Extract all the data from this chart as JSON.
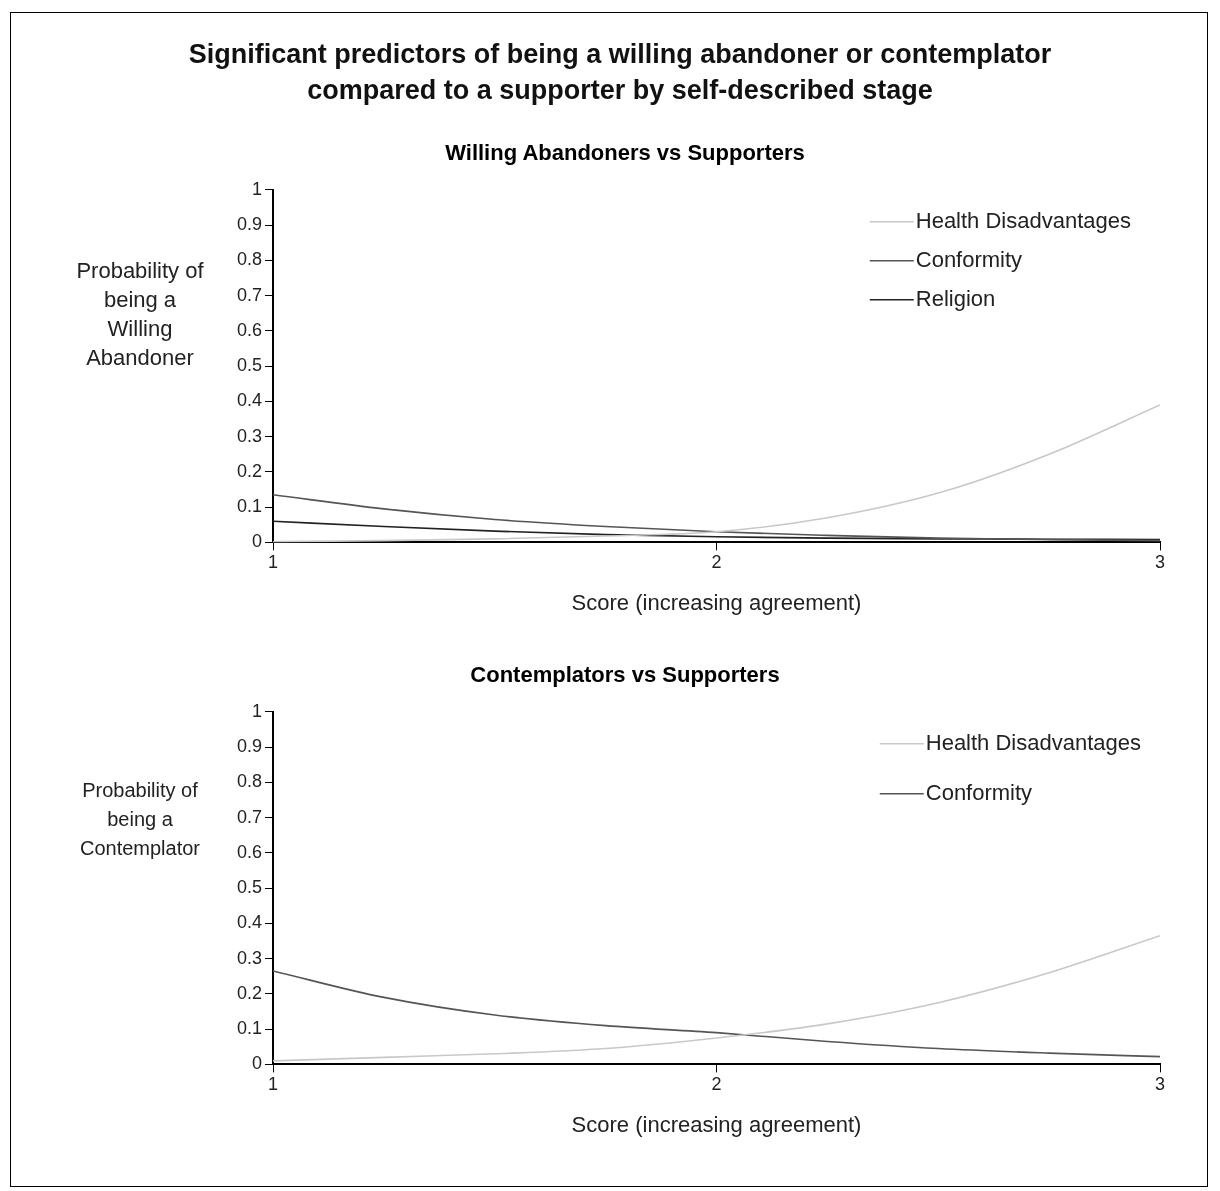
{
  "chart_data": [
    {
      "type": "line",
      "title": "Significant predictors of being a willing abandoner or contemplator compared to a supporter by self-described stage",
      "subtitle": "Willing Abandoners vs Supporters",
      "xlabel": "Score (increasing agreement)",
      "ylabel": "Probability of being a Willing Abandoner",
      "x": [
        1,
        1.25,
        1.5,
        1.75,
        2,
        2.25,
        2.5,
        2.75,
        3
      ],
      "xlim": [
        1,
        3
      ],
      "xticks": [
        1,
        2,
        3
      ],
      "ylim": [
        0,
        1
      ],
      "yticks": [
        0,
        0.1,
        0.2,
        0.3,
        0.4,
        0.5,
        0.6,
        0.7,
        0.8,
        0.9,
        1
      ],
      "legend": "top right",
      "marker": "none",
      "line_style": "solid",
      "series": [
        {
          "name": "Health Disadvantages",
          "color": "#c8c8c8",
          "values": [
            0.002,
            0.005,
            0.01,
            0.018,
            0.03,
            0.07,
            0.14,
            0.25,
            0.39
          ]
        },
        {
          "name": "Conformity",
          "color": "#555555",
          "values": [
            0.135,
            0.095,
            0.065,
            0.045,
            0.03,
            0.02,
            0.012,
            0.008,
            0.005
          ]
        },
        {
          "name": "Religion",
          "color": "#222222",
          "values": [
            0.06,
            0.045,
            0.032,
            0.022,
            0.016,
            0.012,
            0.01,
            0.009,
            0.008
          ]
        }
      ]
    },
    {
      "type": "line",
      "subtitle": "Contemplators vs Supporters",
      "xlabel": "Score (increasing agreement)",
      "ylabel": "Probability of being a Contemplator",
      "x": [
        1,
        1.25,
        1.5,
        1.75,
        2,
        2.25,
        2.5,
        2.75,
        3
      ],
      "xlim": [
        1,
        3
      ],
      "xticks": [
        1,
        2,
        3
      ],
      "ylim": [
        0,
        1
      ],
      "yticks": [
        0,
        0.1,
        0.2,
        0.3,
        0.4,
        0.5,
        0.6,
        0.7,
        0.8,
        0.9,
        1
      ],
      "legend": "top right",
      "marker": "none",
      "line_style": "solid",
      "series": [
        {
          "name": "Health Disadvantages",
          "color": "#c8c8c8",
          "values": [
            0.01,
            0.02,
            0.03,
            0.045,
            0.075,
            0.115,
            0.175,
            0.26,
            0.365
          ]
        },
        {
          "name": "Conformity",
          "color": "#555555",
          "values": [
            0.265,
            0.19,
            0.14,
            0.11,
            0.09,
            0.065,
            0.045,
            0.032,
            0.022
          ]
        }
      ]
    }
  ]
}
